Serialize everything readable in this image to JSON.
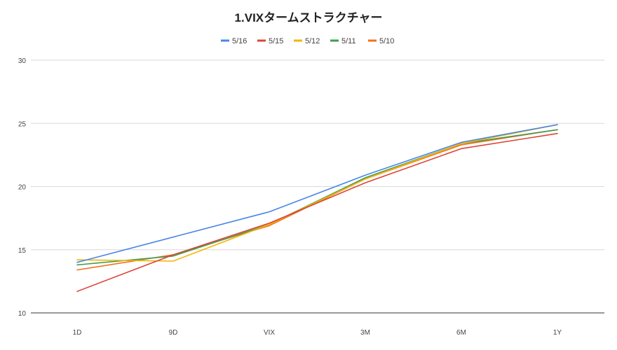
{
  "chart_data": {
    "type": "line",
    "title": "1.VIXタームストラクチャー",
    "xlabel": "",
    "ylabel": "",
    "categories": [
      "1D",
      "9D",
      "VIX",
      "3M",
      "6M",
      "1Y"
    ],
    "ylim": [
      10,
      30
    ],
    "yticks": [
      10,
      15,
      20,
      25,
      30
    ],
    "grid": true,
    "legend_position": "top",
    "series": [
      {
        "name": "5/16",
        "color": "#4a86e8",
        "values": [
          14.0,
          16.0,
          18.0,
          20.9,
          23.5,
          24.9
        ]
      },
      {
        "name": "5/15",
        "color": "#dc4437",
        "values": [
          11.7,
          14.6,
          17.1,
          20.3,
          23.0,
          24.2
        ]
      },
      {
        "name": "5/12",
        "color": "#f4b400",
        "values": [
          14.2,
          14.1,
          17.0,
          20.6,
          23.4,
          24.9
        ]
      },
      {
        "name": "5/11",
        "color": "#3f9e50",
        "values": [
          13.8,
          14.5,
          17.0,
          20.7,
          23.4,
          24.5
        ]
      },
      {
        "name": "5/10",
        "color": "#f2701e",
        "values": [
          13.4,
          14.6,
          16.9,
          20.6,
          23.3,
          24.5
        ]
      }
    ]
  }
}
